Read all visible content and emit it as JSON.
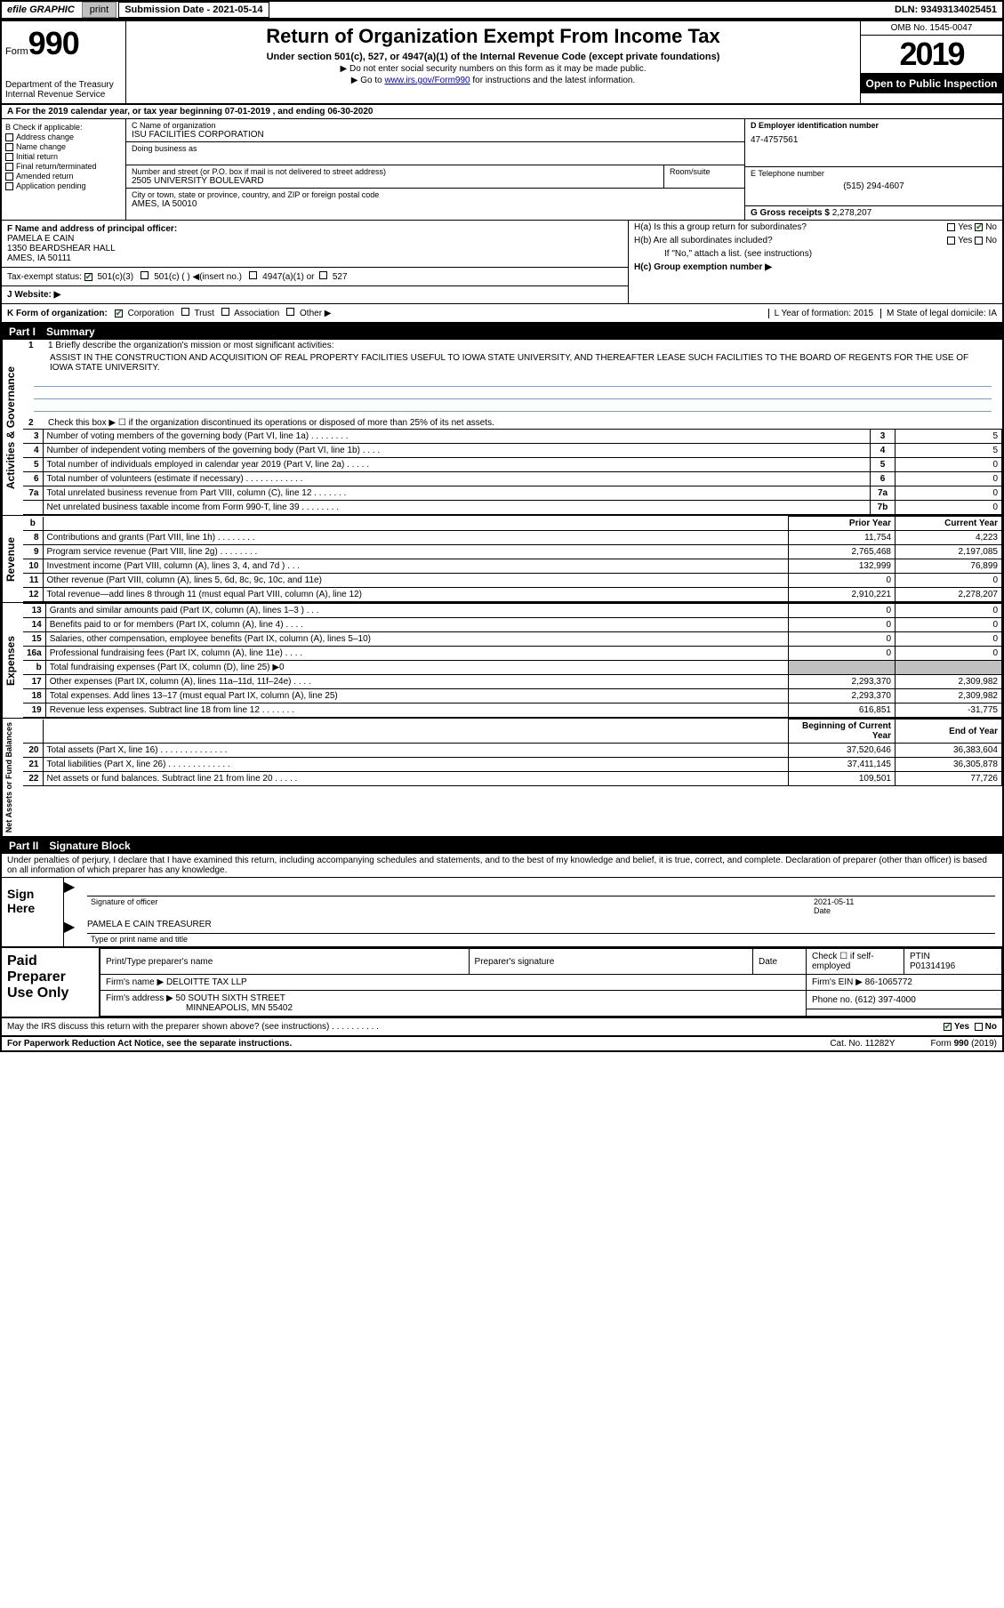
{
  "topbar": {
    "efile": "efile GRAPHIC",
    "print": "print",
    "submission": "Submission Date - 2021-05-14",
    "dln": "DLN: 93493134025451"
  },
  "header": {
    "form_word": "Form",
    "form_num": "990",
    "dept": "Department of the Treasury\nInternal Revenue Service",
    "title": "Return of Organization Exempt From Income Tax",
    "sub": "Under section 501(c), 527, or 4947(a)(1) of the Internal Revenue Code (except private foundations)",
    "note1": "▶ Do not enter social security numbers on this form as it may be made public.",
    "note2_pre": "▶ Go to ",
    "note2_link": "www.irs.gov/Form990",
    "note2_post": " for instructions and the latest information.",
    "omb": "OMB No. 1545-0047",
    "year": "2019",
    "opentopublic": "Open to Public Inspection"
  },
  "rowA": "A For the 2019 calendar year, or tax year beginning 07-01-2019   , and ending 06-30-2020",
  "colB": {
    "title": "B Check if applicable:",
    "items": [
      "Address change",
      "Name change",
      "Initial return",
      "Final return/terminated",
      "Amended return",
      "Application pending"
    ]
  },
  "colC": {
    "name_lbl": "C Name of organization",
    "name": "ISU FACILITIES CORPORATION",
    "dba_lbl": "Doing business as",
    "addr_lbl": "Number and street (or P.O. box if mail is not delivered to street address)",
    "room_lbl": "Room/suite",
    "addr": "2505 UNIVERSITY BOULEVARD",
    "city_lbl": "City or town, state or province, country, and ZIP or foreign postal code",
    "city": "AMES, IA  50010"
  },
  "colD": {
    "ein_lbl": "D Employer identification number",
    "ein": "47-4757561",
    "phone_lbl": "E Telephone number",
    "phone": "(515) 294-4607",
    "gross_lbl": "G Gross receipts $",
    "gross": "2,278,207"
  },
  "cellF": {
    "lbl": "F  Name and address of principal officer:",
    "name": "PAMELA E CAIN",
    "addr1": "1350 BEARDSHEAR HALL",
    "addr2": "AMES, IA  50111"
  },
  "cellI": {
    "lbl": "Tax-exempt status:",
    "opt1": "501(c)(3)",
    "opt2": "501(c) (   ) ◀(insert no.)",
    "opt3": "4947(a)(1) or",
    "opt4": "527"
  },
  "cellJ": {
    "lbl": "J  Website: ▶"
  },
  "colH": {
    "ha": "H(a)  Is this a group return for subordinates?",
    "hb": "H(b)  Are all subordinates included?",
    "hb_note": "If \"No,\" attach a list. (see instructions)",
    "hc": "H(c)  Group exemption number ▶",
    "yes": "Yes",
    "no": "No"
  },
  "rowK": {
    "k": "K Form of organization:",
    "corp": "Corporation",
    "trust": "Trust",
    "assoc": "Association",
    "other": "Other ▶",
    "L": "L Year of formation: 2015",
    "M": "M State of legal domicile: IA"
  },
  "partI": {
    "num": "Part I",
    "title": "Summary"
  },
  "activities": {
    "vlabel": "Activities & Governance",
    "l1": "1  Briefly describe the organization's mission or most significant activities:",
    "mission": "ASSIST IN THE CONSTRUCTION AND ACQUISITION OF REAL PROPERTY FACILITIES USEFUL TO IOWA STATE UNIVERSITY, AND THEREAFTER LEASE SUCH FACILITIES TO THE BOARD OF REGENTS FOR THE USE OF IOWA STATE UNIVERSITY.",
    "l2": "Check this box ▶ ☐ if the organization discontinued its operations or disposed of more than 25% of its net assets.",
    "rows": [
      {
        "n": "3",
        "d": "Number of voting members of the governing body (Part VI, line 1a)  .    .    .    .    .    .    .    .",
        "box": "3",
        "v": "5"
      },
      {
        "n": "4",
        "d": "Number of independent voting members of the governing body (Part VI, line 1b)   .    .    .    .",
        "box": "4",
        "v": "5"
      },
      {
        "n": "5",
        "d": "Total number of individuals employed in calendar year 2019 (Part V, line 2a)   .    .    .    .    .",
        "box": "5",
        "v": "0"
      },
      {
        "n": "6",
        "d": "Total number of volunteers (estimate if necessary)    .    .    .    .    .    .    .    .    .    .    .    .",
        "box": "6",
        "v": "0"
      },
      {
        "n": "7a",
        "d": "Total unrelated business revenue from Part VIII, column (C), line 12   .    .    .    .    .    .    .",
        "box": "7a",
        "v": "0"
      },
      {
        "n": "",
        "d": "Net unrelated business taxable income from Form 990-T, line 39    .    .    .    .    .    .    .    .",
        "box": "7b",
        "v": "0"
      }
    ]
  },
  "revenue": {
    "vlabel": "Revenue",
    "hdr_b": "b",
    "hdr_prior": "Prior Year",
    "hdr_current": "Current Year",
    "rows": [
      {
        "n": "8",
        "d": "Contributions and grants (Part VIII, line 1h)    .    .    .    .    .    .    .    .",
        "p": "11,754",
        "c": "4,223"
      },
      {
        "n": "9",
        "d": "Program service revenue (Part VIII, line 2g)    .    .    .    .    .    .    .    .",
        "p": "2,765,468",
        "c": "2,197,085"
      },
      {
        "n": "10",
        "d": "Investment income (Part VIII, column (A), lines 3, 4, and 7d )    .    .    .",
        "p": "132,999",
        "c": "76,899"
      },
      {
        "n": "11",
        "d": "Other revenue (Part VIII, column (A), lines 5, 6d, 8c, 9c, 10c, and 11e)",
        "p": "0",
        "c": "0"
      },
      {
        "n": "12",
        "d": "Total revenue—add lines 8 through 11 (must equal Part VIII, column (A), line 12)",
        "p": "2,910,221",
        "c": "2,278,207"
      }
    ]
  },
  "expenses": {
    "vlabel": "Expenses",
    "rows": [
      {
        "n": "13",
        "d": "Grants and similar amounts paid (Part IX, column (A), lines 1–3 )   .    .    .",
        "p": "0",
        "c": "0"
      },
      {
        "n": "14",
        "d": "Benefits paid to or for members (Part IX, column (A), line 4)    .    .    .    .",
        "p": "0",
        "c": "0"
      },
      {
        "n": "15",
        "d": "Salaries, other compensation, employee benefits (Part IX, column (A), lines 5–10)",
        "p": "0",
        "c": "0"
      },
      {
        "n": "16a",
        "d": "Professional fundraising fees (Part IX, column (A), line 11e)   .    .    .    .",
        "p": "0",
        "c": "0"
      },
      {
        "n": "b",
        "d": "Total fundraising expenses (Part IX, column (D), line 25) ▶0",
        "p": "",
        "c": "",
        "grey": true
      },
      {
        "n": "17",
        "d": "Other expenses (Part IX, column (A), lines 11a–11d, 11f–24e)   .    .    .    .",
        "p": "2,293,370",
        "c": "2,309,982"
      },
      {
        "n": "18",
        "d": "Total expenses. Add lines 13–17 (must equal Part IX, column (A), line 25)",
        "p": "2,293,370",
        "c": "2,309,982"
      },
      {
        "n": "19",
        "d": "Revenue less expenses. Subtract line 18 from line 12   .    .    .    .    .    .    .",
        "p": "616,851",
        "c": "-31,775"
      }
    ]
  },
  "netassets": {
    "vlabel": "Net Assets or Fund Balances",
    "hdr_begin": "Beginning of Current Year",
    "hdr_end": "End of Year",
    "rows": [
      {
        "n": "20",
        "d": "Total assets (Part X, line 16)   .    .    .    .    .    .    .    .    .    .    .    .    .    .",
        "p": "37,520,646",
        "c": "36,383,604"
      },
      {
        "n": "21",
        "d": "Total liabilities (Part X, line 26)   .    .    .    .    .    .    .    .    .    .    .    .    .",
        "p": "37,411,145",
        "c": "36,305,878"
      },
      {
        "n": "22",
        "d": "Net assets or fund balances. Subtract line 21 from line 20   .    .    .    .    .",
        "p": "109,501",
        "c": "77,726"
      }
    ]
  },
  "partII": {
    "num": "Part II",
    "title": "Signature Block"
  },
  "sig": {
    "penalties": "Under penalties of perjury, I declare that I have examined this return, including accompanying schedules and statements, and to the best of my knowledge and belief, it is true, correct, and complete. Declaration of preparer (other than officer) is based on all information of which preparer has any knowledge.",
    "signhere": "Sign Here",
    "sig_officer": "Signature of officer",
    "date_lbl": "Date",
    "date": "2021-05-11",
    "name": "PAMELA E CAIN  TREASURER",
    "name_lbl": "Type or print name and title"
  },
  "paid": {
    "title": "Paid Preparer Use Only",
    "prep_name_lbl": "Print/Type preparer's name",
    "prep_sig_lbl": "Preparer's signature",
    "date_lbl": "Date",
    "check_lbl": "Check ☐ if self-employed",
    "ptin_lbl": "PTIN",
    "ptin": "P01314196",
    "firm_name_lbl": "Firm's name    ▶",
    "firm_name": "DELOITTE TAX LLP",
    "firm_ein_lbl": "Firm's EIN ▶",
    "firm_ein": "86-1065772",
    "firm_addr_lbl": "Firm's address ▶",
    "firm_addr1": "50 SOUTH SIXTH STREET",
    "firm_addr2": "MINNEAPOLIS, MN  55402",
    "phone_lbl": "Phone no.",
    "phone": "(612) 397-4000"
  },
  "discuss": "May the IRS discuss this return with the preparer shown above? (see instructions)    .    .    .    .    .    .    .    .    .    .",
  "footer": {
    "pra": "For Paperwork Reduction Act Notice, see the separate instructions.",
    "cat": "Cat. No. 11282Y",
    "form": "Form 990 (2019)"
  }
}
